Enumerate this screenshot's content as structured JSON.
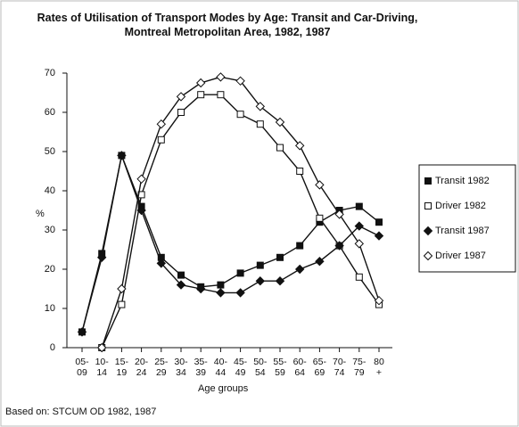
{
  "chart_data": {
    "type": "line",
    "title": "Rates of Utilisation of Transport Modes by Age: Transit and Car-Driving, Montreal Metropolitan Area, 1982, 1987",
    "y_label": "%",
    "x_label": "Age groups",
    "note": "Based on: STCUM OD 1982, 1987",
    "categories": [
      "05-\n09",
      "10-\n14",
      "15-\n19",
      "20-\n24",
      "25-\n29",
      "30-\n34",
      "35-\n39",
      "40-\n44",
      "45-\n49",
      "50-\n54",
      "55-\n59",
      "60-\n64",
      "65-\n69",
      "70-\n74",
      "75-\n79",
      "80\n+"
    ],
    "ylim": [
      0,
      70
    ],
    "yticks": [
      0,
      10,
      20,
      30,
      40,
      50,
      60,
      70
    ],
    "legend": "right",
    "series": [
      {
        "name": "Transit 1982",
        "color": "#111111",
        "marker": "filled-square",
        "values": [
          4,
          24,
          49,
          36,
          23,
          18.5,
          15.5,
          16,
          19,
          21,
          23,
          26,
          32,
          35,
          36,
          32
        ]
      },
      {
        "name": "Driver 1982",
        "color": "#111111",
        "marker": "open-square",
        "values": [
          null,
          0,
          11,
          39,
          53,
          60,
          64.5,
          64.5,
          59.5,
          57,
          51,
          45,
          33,
          26,
          18,
          11
        ]
      },
      {
        "name": "Transit 1987",
        "color": "#111111",
        "marker": "filled-diamond",
        "values": [
          4,
          23,
          49,
          35,
          21.5,
          16,
          15,
          14,
          14,
          17,
          17,
          20,
          22,
          26,
          31,
          28.5
        ]
      },
      {
        "name": "Driver 1987",
        "color": "#111111",
        "marker": "open-diamond",
        "values": [
          null,
          0,
          15,
          43,
          57,
          64,
          67.5,
          69,
          68,
          61.5,
          57.5,
          51.5,
          41.5,
          34,
          26.5,
          12
        ]
      }
    ]
  }
}
